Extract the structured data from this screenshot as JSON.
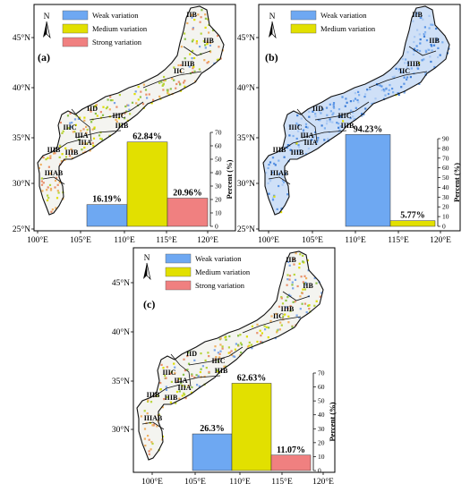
{
  "panels": [
    {
      "id": "a",
      "label": "(a)",
      "lat_labels": [
        "45°N",
        "40°N",
        "35°N",
        "30°N",
        "25°N"
      ],
      "lon_labels": [
        "100°E",
        "105°E",
        "110°E",
        "115°E",
        "120°E"
      ],
      "regions": [
        "IIB",
        "IIB",
        "IIC",
        "IIIB",
        "IID",
        "IIIC",
        "IIIB",
        "IIIC",
        "IIIA",
        "IIIB",
        "IIIAB",
        "IIIB",
        "IIIA"
      ],
      "north": "N",
      "legend": [
        "Weak variation",
        "Medium variation",
        "Strong variation"
      ],
      "chart_data": {
        "type": "bar",
        "categories": [
          "Weak variation",
          "Medium variation",
          "Strong variation"
        ],
        "values": [
          16.19,
          62.84,
          20.96
        ],
        "value_labels": [
          "16.19%",
          "62.84%",
          "20.96%"
        ],
        "ylabel": "Percent (%)",
        "ylim": [
          0,
          70
        ],
        "yticks": [
          "0",
          "10",
          "20",
          "30",
          "40",
          "50",
          "60",
          "70"
        ],
        "colors": [
          "#6ea8f2",
          "#e2e000",
          "#f08080"
        ]
      }
    },
    {
      "id": "b",
      "label": "(b)",
      "lat_labels": [
        "45°N",
        "40°N",
        "35°N",
        "30°N",
        "25°N"
      ],
      "lon_labels": [
        "100°E",
        "105°E",
        "110°E",
        "115°E",
        "120°E"
      ],
      "regions": [
        "IIB",
        "IIB",
        "IIC",
        "IIIB",
        "IID",
        "IIIC",
        "IIIB",
        "IIIC",
        "IIIA",
        "IIIB",
        "IIIAB",
        "IIIB",
        "IIIA"
      ],
      "north": "N",
      "legend": [
        "Weak variation",
        "Medium variation"
      ],
      "chart_data": {
        "type": "bar",
        "categories": [
          "Weak variation",
          "Medium variation"
        ],
        "values": [
          94.23,
          5.77
        ],
        "value_labels": [
          "94.23%",
          "5.77%"
        ],
        "ylabel": "Percent (%)",
        "ylim": [
          0,
          90
        ],
        "yticks": [
          "0",
          "10",
          "20",
          "30",
          "40",
          "50",
          "60",
          "70",
          "80",
          "90"
        ],
        "colors": [
          "#6ea8f2",
          "#e2e000"
        ]
      }
    },
    {
      "id": "c",
      "label": "(c)",
      "lat_labels": [
        "45°N",
        "40°N",
        "35°N",
        "30°N"
      ],
      "lon_labels": [
        "100°E",
        "105°E",
        "110°E",
        "115°E",
        "120°E"
      ],
      "regions": [
        "IIB",
        "IIB",
        "IIC",
        "IIIB",
        "IID",
        "IIIC",
        "IIIB",
        "IIIC",
        "IIIA",
        "IIIB",
        "IIIAB",
        "IIIB",
        "IIIA"
      ],
      "north": "N",
      "legend": [
        "Weak variation",
        "Medium variation",
        "Strong variation"
      ],
      "chart_data": {
        "type": "bar",
        "categories": [
          "Weak variation",
          "Medium variation",
          "Strong variation"
        ],
        "values": [
          26.3,
          62.63,
          11.07
        ],
        "value_labels": [
          "26.3%",
          "62.63%",
          "11.07%"
        ],
        "ylabel": "Percent (%)",
        "ylim": [
          0,
          70
        ],
        "yticks": [
          "0",
          "10",
          "20",
          "30",
          "40",
          "50",
          "60",
          "70"
        ],
        "colors": [
          "#6ea8f2",
          "#e2e000",
          "#f08080"
        ]
      }
    }
  ]
}
